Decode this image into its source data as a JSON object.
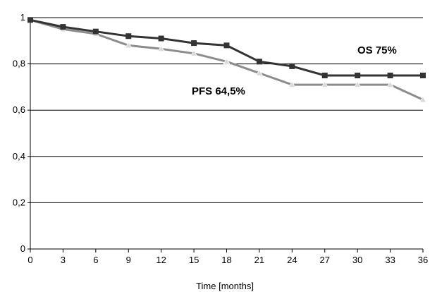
{
  "chart_data": {
    "type": "line",
    "title": "",
    "xlabel": "Time [months]",
    "ylabel": "",
    "x": [
      0,
      3,
      6,
      9,
      12,
      15,
      18,
      21,
      24,
      27,
      30,
      33,
      36
    ],
    "xlim": [
      0,
      36
    ],
    "ylim": [
      0,
      1
    ],
    "xticks": [
      "0",
      "3",
      "6",
      "9",
      "12",
      "15",
      "18",
      "21",
      "24",
      "27",
      "30",
      "33",
      "36"
    ],
    "yticks": [
      "0",
      "0,2",
      "0,4",
      "0,6",
      "0,8",
      "1"
    ],
    "grid": "horizontal",
    "legend": "none",
    "series": [
      {
        "name": "OS 75%",
        "values": [
          0.99,
          0.96,
          0.94,
          0.92,
          0.91,
          0.89,
          0.88,
          0.81,
          0.79,
          0.75,
          0.75,
          0.75,
          0.75
        ],
        "color": "#333333",
        "marker": "square"
      },
      {
        "name": "PFS 64,5%",
        "values": [
          0.99,
          0.95,
          0.93,
          0.88,
          0.865,
          0.845,
          0.81,
          0.76,
          0.71,
          0.71,
          0.71,
          0.71,
          0.645
        ],
        "color": "#8c8c8c",
        "marker": "triangle"
      }
    ]
  }
}
